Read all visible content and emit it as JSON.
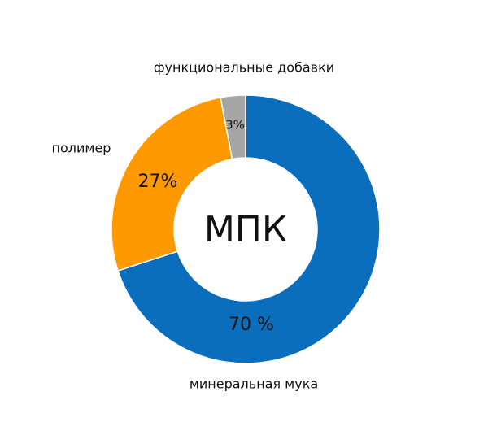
{
  "chart_data": {
    "type": "donut",
    "center_label": "МПК",
    "categories": [
      "минеральная мука",
      "полимер",
      "функциональные добавки"
    ],
    "values": [
      70,
      27,
      3
    ],
    "value_labels": [
      "70 %",
      "27%",
      "3%"
    ],
    "colors": [
      "#0b6ebd",
      "#ff9900",
      "#a6a6a6"
    ]
  }
}
